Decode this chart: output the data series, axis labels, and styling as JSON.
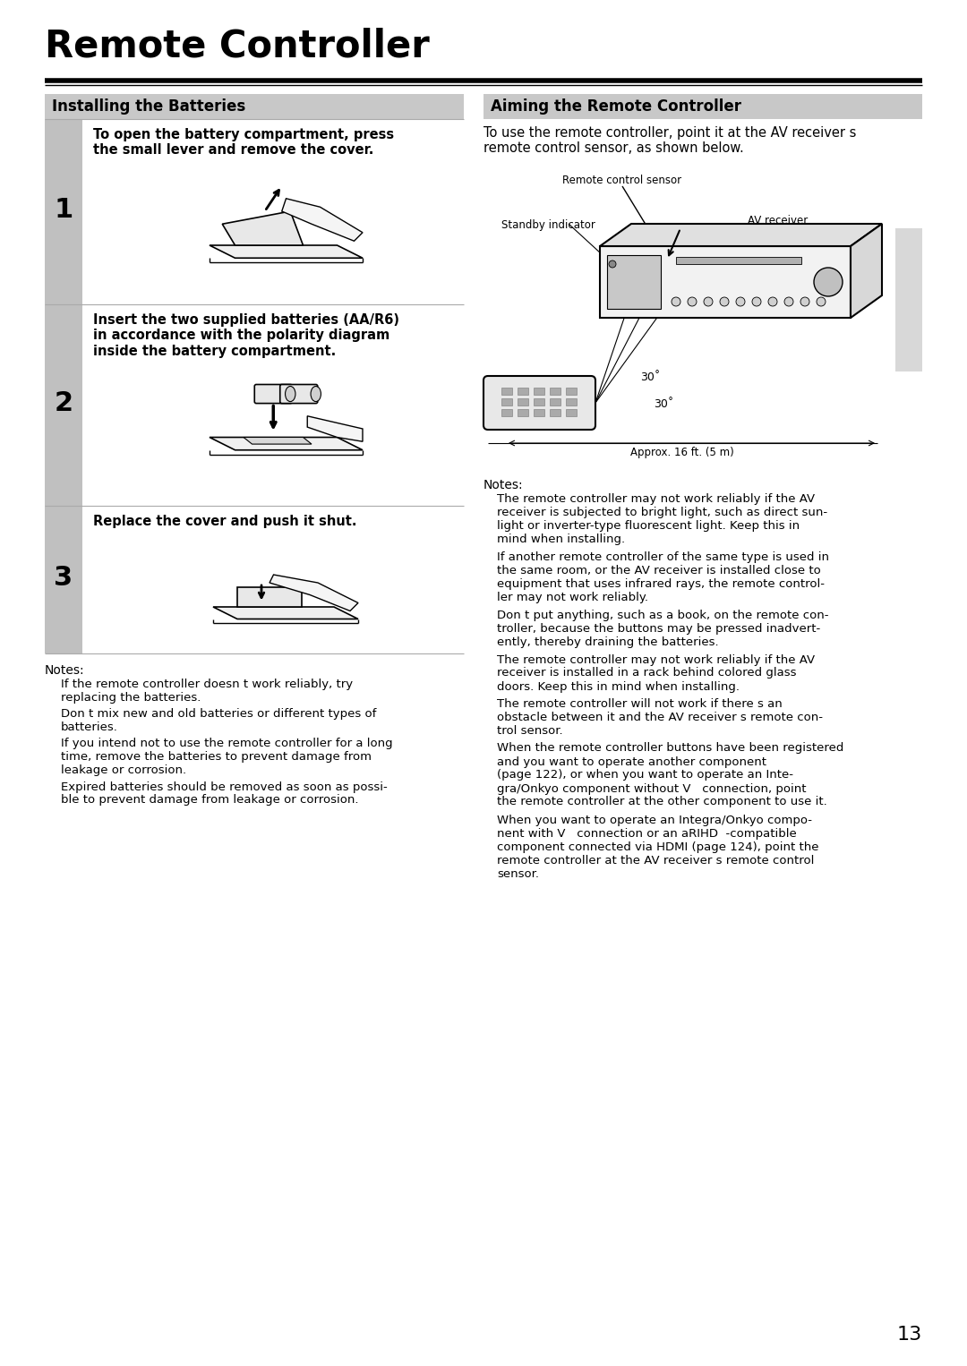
{
  "title": "Remote Controller",
  "page_number": "13",
  "bg_color": "#ffffff",
  "left_section_title": "Installing the Batteries",
  "right_section_title": "Aiming the Remote Controller",
  "section_header_bg": "#c8c8c8",
  "step_num_col_bg": "#c0c0c0",
  "divider_color": "#aaaaaa",
  "steps": [
    {
      "number": "1",
      "text": "To open the battery compartment, press\nthe small lever and remove the cover."
    },
    {
      "number": "2",
      "text": "Insert the two supplied batteries (AA/R6)\nin accordance with the polarity diagram\ninside the battery compartment."
    },
    {
      "number": "3",
      "text": "Replace the cover and push it shut."
    }
  ],
  "left_notes_title": "Notes:",
  "left_notes": [
    "If the remote controller doesn t work reliably, try\nreplacing the batteries.",
    "Don t mix new and old batteries or different types of\nbatteries.",
    "If you intend not to use the remote controller for a long\ntime, remove the batteries to prevent damage from\nleakage or corrosion.",
    "Expired batteries should be removed as soon as possi-\nble to prevent damage from leakage or corrosion."
  ],
  "right_intro": "To use the remote controller, point it at the AV receiver s\nremote control sensor, as shown below.",
  "diagram_label_standby": "Standby indicator",
  "diagram_label_sensor": "Remote control sensor",
  "diagram_label_av": "AV receiver",
  "diagram_angle1": "30˚",
  "diagram_angle2": "30˚",
  "diagram_dist": "Approx. 16 ft. (5 m)",
  "right_notes_title": "Notes:",
  "right_notes": [
    "The remote controller may not work reliably if the AV\nreceiver is subjected to bright light, such as direct sun-\nlight or inverter-type fluorescent light. Keep this in\nmind when installing.",
    "If another remote controller of the same type is used in\nthe same room, or the AV receiver is installed close to\nequipment that uses infrared rays, the remote control-\nler may not work reliably.",
    "Don t put anything, such as a book, on the remote con-\ntroller, because the buttons may be pressed inadvert-\nently, thereby draining the batteries.",
    "The remote controller may not work reliably if the AV\nreceiver is installed in a rack behind colored glass\ndoors. Keep this in mind when installing.",
    "The remote controller will not work if there s an\nobstacle between it and the AV receiver s remote con-\ntrol sensor.",
    "When the remote controller buttons have been registered\nand you want to operate another component\n(page 122), or when you want to operate an Inte-\ngra/Onkyo component without V   connection, point\nthe remote controller at the other component to use it.",
    "When you want to operate an Integra/Onkyo compo-\nnent with V   connection or an aRIHD  -compatible\ncomponent connected via HDMI (page 124), point the\nremote controller at the AV receiver s remote control\nsensor."
  ]
}
